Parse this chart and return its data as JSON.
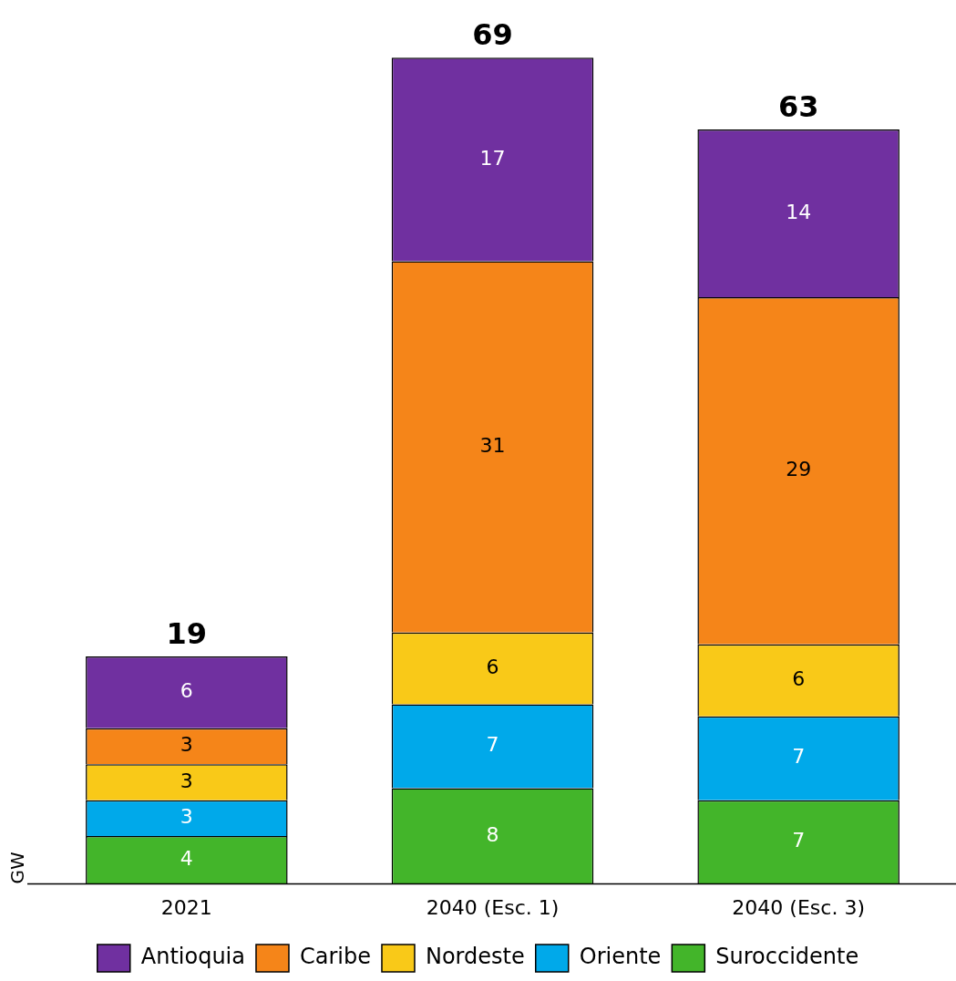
{
  "chart_data": {
    "type": "bar",
    "stacked": true,
    "ylabel": "GW",
    "categories": [
      "2021",
      "2040 (Esc. 1)",
      "2040 (Esc. 3)"
    ],
    "series": [
      {
        "name": "Suroccidente",
        "color": "#43b52a",
        "values": [
          4,
          8,
          7
        ]
      },
      {
        "name": "Oriente",
        "color": "#00a9ea",
        "values": [
          3,
          7,
          7
        ]
      },
      {
        "name": "Nordeste",
        "color": "#f9c918",
        "values": [
          3,
          6,
          6
        ]
      },
      {
        "name": "Caribe",
        "color": "#f58519",
        "values": [
          3,
          31,
          29
        ]
      },
      {
        "name": "Antioquia",
        "color": "#7030a0",
        "values": [
          6,
          17,
          14
        ]
      }
    ],
    "data_labels": true,
    "totals": [
      "19",
      "69",
      "63"
    ],
    "legend": "bottom",
    "grid": false
  }
}
